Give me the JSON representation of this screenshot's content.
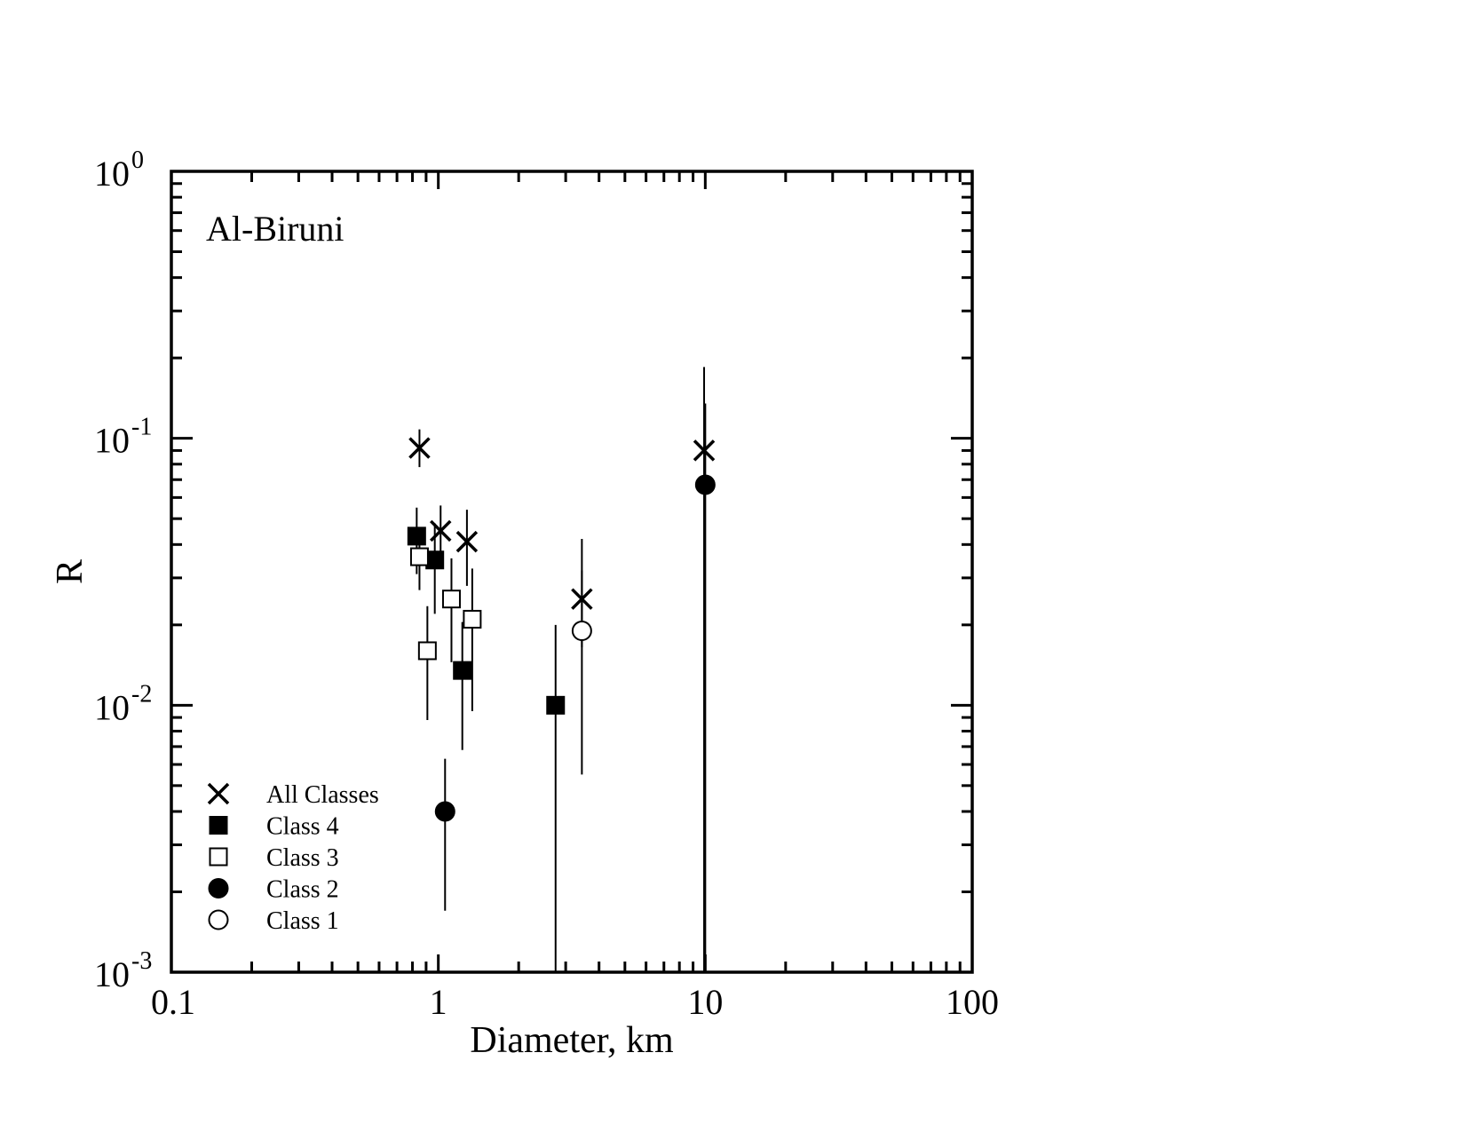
{
  "chart_data": {
    "type": "scatter",
    "annotation": "Al-Biruni",
    "xlabel": "Diameter, km",
    "ylabel": "R",
    "xscale": "log",
    "yscale": "log",
    "xlim": [
      0.1,
      100
    ],
    "ylim": [
      0.001,
      1
    ],
    "x_ticks": [
      "0.1",
      "1",
      "10",
      "100"
    ],
    "y_ticks": [
      {
        "base": "10",
        "exp": "0"
      },
      {
        "base": "10",
        "exp": "-1"
      },
      {
        "base": "10",
        "exp": "-2"
      },
      {
        "base": "10",
        "exp": "-3"
      }
    ],
    "legend_position": "bottom-left",
    "series": [
      {
        "name": "All Classes",
        "marker": "x",
        "points": [
          {
            "x": 0.85,
            "y": 0.092,
            "ylow": 0.078,
            "yhigh": 0.108
          },
          {
            "x": 1.02,
            "y": 0.045,
            "ylow": 0.035,
            "yhigh": 0.056
          },
          {
            "x": 1.28,
            "y": 0.041,
            "ylow": 0.028,
            "yhigh": 0.054
          },
          {
            "x": 3.45,
            "y": 0.025,
            "ylow": 0.0165,
            "yhigh": 0.042
          },
          {
            "x": 9.9,
            "y": 0.09,
            "ylow": 0.001,
            "yhigh": 0.185
          }
        ]
      },
      {
        "name": "Class 4",
        "marker": "filled-square",
        "points": [
          {
            "x": 0.83,
            "y": 0.043,
            "ylow": 0.031,
            "yhigh": 0.055
          },
          {
            "x": 0.97,
            "y": 0.035,
            "ylow": 0.022,
            "yhigh": 0.048
          },
          {
            "x": 1.23,
            "y": 0.0135,
            "ylow": 0.0068,
            "yhigh": 0.0205
          },
          {
            "x": 2.75,
            "y": 0.01,
            "ylow": 0.001,
            "yhigh": 0.02
          }
        ]
      },
      {
        "name": "Class 3",
        "marker": "open-square",
        "points": [
          {
            "x": 0.85,
            "y": 0.036,
            "ylow": 0.027,
            "yhigh": 0.045
          },
          {
            "x": 0.91,
            "y": 0.016,
            "ylow": 0.0088,
            "yhigh": 0.0235
          },
          {
            "x": 1.12,
            "y": 0.025,
            "ylow": 0.0145,
            "yhigh": 0.0355
          },
          {
            "x": 1.34,
            "y": 0.021,
            "ylow": 0.0095,
            "yhigh": 0.0325
          }
        ]
      },
      {
        "name": "Class 2",
        "marker": "filled-circle",
        "points": [
          {
            "x": 1.06,
            "y": 0.004,
            "ylow": 0.0017,
            "yhigh": 0.0063
          },
          {
            "x": 10,
            "y": 0.067,
            "ylow": 0.001,
            "yhigh": 0.135
          }
        ]
      },
      {
        "name": "Class 1",
        "marker": "open-circle",
        "points": [
          {
            "x": 3.45,
            "y": 0.019,
            "ylow": 0.0055,
            "yhigh": 0.032
          }
        ]
      }
    ]
  }
}
